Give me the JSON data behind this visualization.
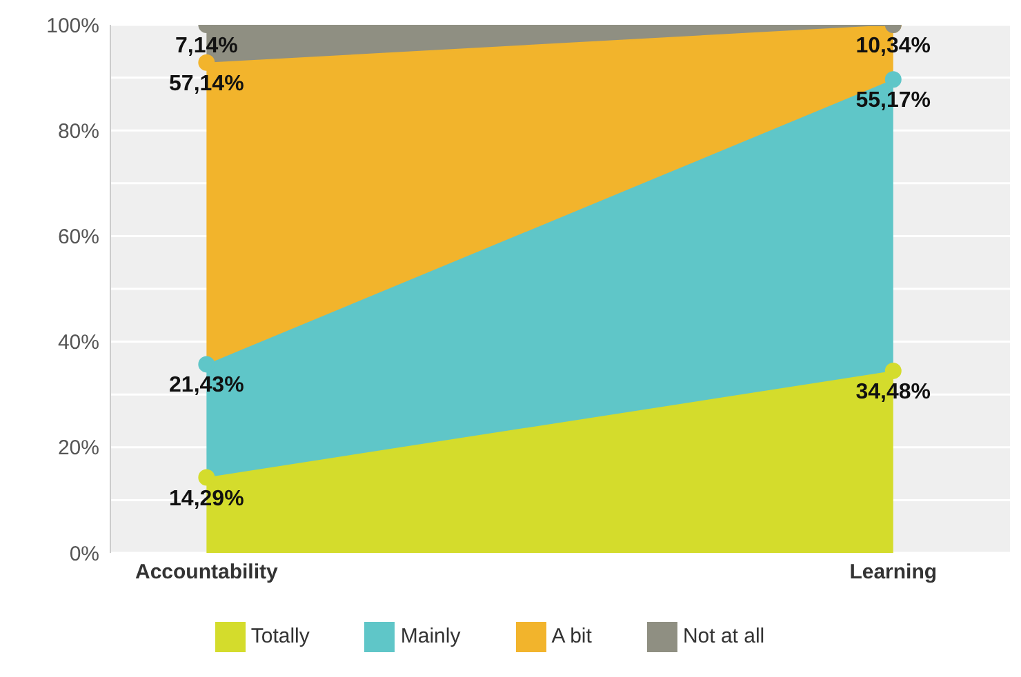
{
  "chart_data": {
    "type": "area",
    "stacked": true,
    "categories": [
      "Accountability",
      "Learning"
    ],
    "series": [
      {
        "name": "Totally",
        "color": "#d4dc2c",
        "values": [
          14.29,
          34.48
        ],
        "value_labels": [
          "14,29%",
          "34,48%"
        ]
      },
      {
        "name": "Mainly",
        "color": "#5fc6c8",
        "values": [
          21.43,
          55.17
        ],
        "value_labels": [
          "21,43%",
          "55,17%"
        ]
      },
      {
        "name": "A bit",
        "color": "#f2b42c",
        "values": [
          57.14,
          10.34
        ],
        "value_labels": [
          "57,14%",
          "10,34%"
        ]
      },
      {
        "name": "Not at all",
        "color": "#8f8f82",
        "values": [
          7.14,
          0
        ],
        "value_labels": [
          "7,14%",
          null
        ]
      }
    ],
    "ylim": [
      0,
      100
    ],
    "yticks": [
      {
        "value": 0,
        "label": "0%"
      },
      {
        "value": 10,
        "label": null
      },
      {
        "value": 20,
        "label": "20%"
      },
      {
        "value": 30,
        "label": null
      },
      {
        "value": 40,
        "label": "40%"
      },
      {
        "value": 50,
        "label": null
      },
      {
        "value": 60,
        "label": "60%"
      },
      {
        "value": 70,
        "label": null
      },
      {
        "value": 80,
        "label": "80%"
      },
      {
        "value": 90,
        "label": null
      },
      {
        "value": 100,
        "label": "100%"
      }
    ],
    "grid": "y",
    "legend": "bottom",
    "marker": "circle"
  }
}
